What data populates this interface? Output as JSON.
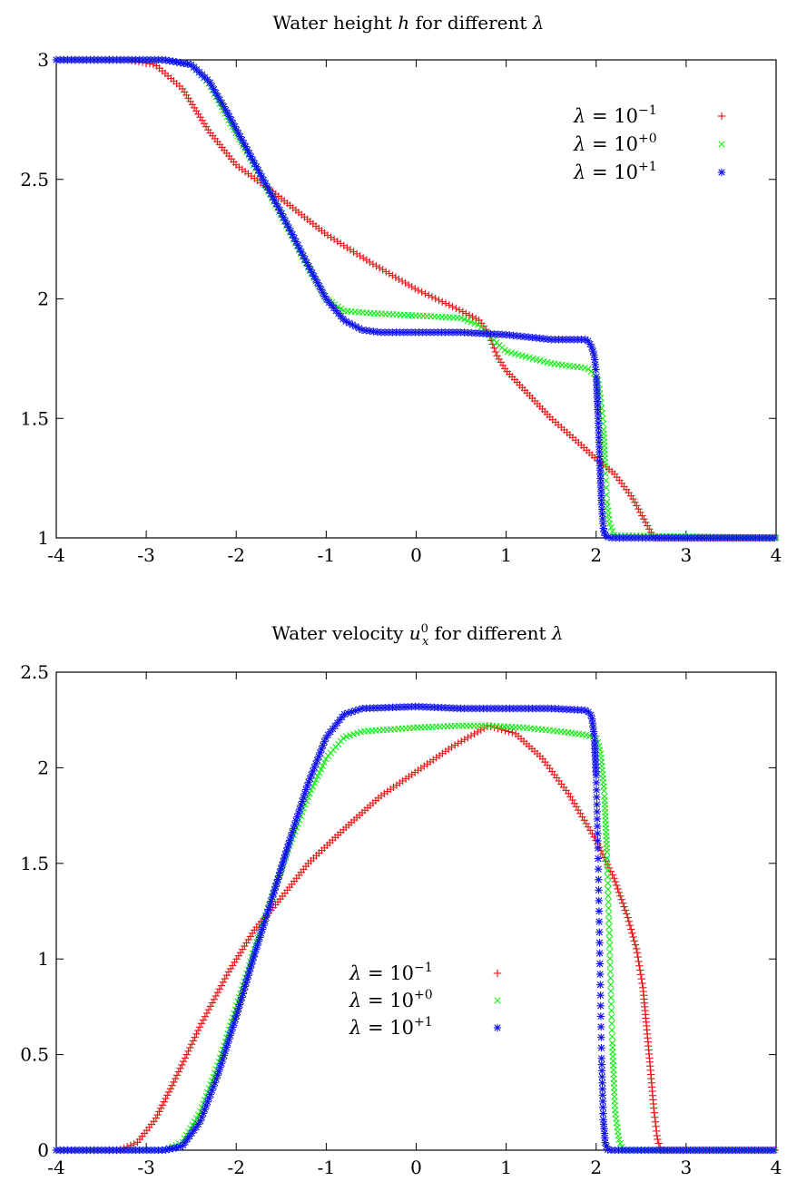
{
  "colors": {
    "red": "#ee1111",
    "green": "#11ee11",
    "blue": "#1111ee"
  },
  "chart_data": [
    {
      "type": "scatter",
      "title": "Water height h for different λ",
      "xlabel": "",
      "ylabel": "",
      "xlim": [
        -4,
        4
      ],
      "ylim": [
        1,
        3
      ],
      "xticks": [
        "-4",
        "-3",
        "-2",
        "-1",
        "0",
        "1",
        "2",
        "3",
        "4"
      ],
      "yticks": [
        "1",
        "1.5",
        "2",
        "2.5",
        "3"
      ],
      "grid": false,
      "legend_position": "top-right",
      "series": [
        {
          "name": "λ = 10^-1",
          "marker": "plus",
          "color": "#ee1111",
          "points": [
            [
              -4,
              3
            ],
            [
              -3.2,
              3
            ],
            [
              -2.9,
              2.98
            ],
            [
              -2.6,
              2.88
            ],
            [
              -2.3,
              2.7
            ],
            [
              -2.0,
              2.56
            ],
            [
              -1.6,
              2.45
            ],
            [
              -1.3,
              2.36
            ],
            [
              -1.0,
              2.27
            ],
            [
              -0.5,
              2.15
            ],
            [
              0.0,
              2.04
            ],
            [
              0.5,
              1.95
            ],
            [
              0.7,
              1.91
            ],
            [
              0.8,
              1.86
            ],
            [
              0.9,
              1.76
            ],
            [
              1.0,
              1.7
            ],
            [
              1.2,
              1.62
            ],
            [
              1.5,
              1.5
            ],
            [
              1.8,
              1.4
            ],
            [
              2.0,
              1.33
            ],
            [
              2.2,
              1.27
            ],
            [
              2.4,
              1.17
            ],
            [
              2.5,
              1.1
            ],
            [
              2.6,
              1.03
            ],
            [
              2.65,
              1.0
            ],
            [
              4,
              1
            ]
          ]
        },
        {
          "name": "λ = 10^+0",
          "marker": "cross",
          "color": "#11ee11",
          "points": [
            [
              -4,
              3
            ],
            [
              -2.8,
              3
            ],
            [
              -2.5,
              2.98
            ],
            [
              -2.3,
              2.9
            ],
            [
              -2.1,
              2.76
            ],
            [
              -1.8,
              2.56
            ],
            [
              -1.5,
              2.35
            ],
            [
              -1.2,
              2.13
            ],
            [
              -1.0,
              2.0
            ],
            [
              -0.8,
              1.95
            ],
            [
              -0.5,
              1.94
            ],
            [
              0.0,
              1.93
            ],
            [
              0.5,
              1.92
            ],
            [
              0.7,
              1.89
            ],
            [
              0.8,
              1.85
            ],
            [
              1.0,
              1.78
            ],
            [
              1.5,
              1.73
            ],
            [
              1.9,
              1.71
            ],
            [
              2.0,
              1.68
            ],
            [
              2.03,
              1.64
            ],
            [
              2.05,
              1.58
            ],
            [
              2.08,
              1.47
            ],
            [
              2.1,
              1.3
            ],
            [
              2.12,
              1.15
            ],
            [
              2.15,
              1.06
            ],
            [
              2.2,
              1.01
            ],
            [
              4,
              1
            ]
          ]
        },
        {
          "name": "λ = 10^+1",
          "marker": "star",
          "color": "#1111ee",
          "points": [
            [
              -4,
              3
            ],
            [
              -2.8,
              3
            ],
            [
              -2.5,
              2.98
            ],
            [
              -2.3,
              2.91
            ],
            [
              -2.1,
              2.78
            ],
            [
              -1.8,
              2.57
            ],
            [
              -1.5,
              2.36
            ],
            [
              -1.2,
              2.14
            ],
            [
              -1.0,
              2.0
            ],
            [
              -0.8,
              1.91
            ],
            [
              -0.6,
              1.87
            ],
            [
              -0.4,
              1.86
            ],
            [
              0.0,
              1.86
            ],
            [
              0.5,
              1.86
            ],
            [
              1.0,
              1.85
            ],
            [
              1.5,
              1.83
            ],
            [
              1.9,
              1.83
            ],
            [
              1.95,
              1.8
            ],
            [
              1.98,
              1.76
            ],
            [
              2.0,
              1.69
            ],
            [
              2.02,
              1.52
            ],
            [
              2.04,
              1.32
            ],
            [
              2.06,
              1.14
            ],
            [
              2.08,
              1.04
            ],
            [
              2.1,
              1.01
            ],
            [
              2.15,
              1.0
            ],
            [
              4,
              1
            ]
          ]
        }
      ]
    },
    {
      "type": "scatter",
      "title": "Water velocity u_x^0 for different λ",
      "xlabel": "",
      "ylabel": "",
      "xlim": [
        -4,
        4
      ],
      "ylim": [
        0,
        2.5
      ],
      "xticks": [
        "-4",
        "-3",
        "-2",
        "-1",
        "0",
        "1",
        "2",
        "3",
        "4"
      ],
      "yticks": [
        "0",
        "0.5",
        "1",
        "1.5",
        "2",
        "2.5"
      ],
      "grid": false,
      "legend_position": "bottom-center",
      "series": [
        {
          "name": "λ = 10^-1",
          "marker": "plus",
          "color": "#ee1111",
          "points": [
            [
              -4,
              0
            ],
            [
              -3.3,
              0
            ],
            [
              -3.1,
              0.04
            ],
            [
              -2.9,
              0.16
            ],
            [
              -2.7,
              0.35
            ],
            [
              -2.4,
              0.65
            ],
            [
              -2.1,
              0.92
            ],
            [
              -1.8,
              1.15
            ],
            [
              -1.5,
              1.32
            ],
            [
              -1.2,
              1.5
            ],
            [
              -0.8,
              1.68
            ],
            [
              -0.4,
              1.85
            ],
            [
              0.0,
              1.98
            ],
            [
              0.4,
              2.11
            ],
            [
              0.8,
              2.22
            ],
            [
              1.1,
              2.18
            ],
            [
              1.4,
              2.05
            ],
            [
              1.7,
              1.86
            ],
            [
              2.0,
              1.62
            ],
            [
              2.2,
              1.42
            ],
            [
              2.35,
              1.22
            ],
            [
              2.45,
              1.05
            ],
            [
              2.52,
              0.85
            ],
            [
              2.56,
              0.65
            ],
            [
              2.6,
              0.44
            ],
            [
              2.64,
              0.22
            ],
            [
              2.68,
              0.06
            ],
            [
              2.72,
              0.0
            ],
            [
              4,
              0
            ]
          ]
        },
        {
          "name": "λ = 10^+0",
          "marker": "cross",
          "color": "#11ee11",
          "points": [
            [
              -4,
              0
            ],
            [
              -2.8,
              0
            ],
            [
              -2.6,
              0.04
            ],
            [
              -2.4,
              0.2
            ],
            [
              -2.2,
              0.45
            ],
            [
              -2.0,
              0.75
            ],
            [
              -1.8,
              1.05
            ],
            [
              -1.6,
              1.33
            ],
            [
              -1.4,
              1.6
            ],
            [
              -1.2,
              1.85
            ],
            [
              -1.0,
              2.05
            ],
            [
              -0.8,
              2.16
            ],
            [
              -0.6,
              2.19
            ],
            [
              0.0,
              2.21
            ],
            [
              0.5,
              2.22
            ],
            [
              0.8,
              2.22
            ],
            [
              1.2,
              2.21
            ],
            [
              1.6,
              2.19
            ],
            [
              1.9,
              2.17
            ],
            [
              2.0,
              2.16
            ],
            [
              2.04,
              2.1
            ],
            [
              2.06,
              2.03
            ],
            [
              2.09,
              1.87
            ],
            [
              2.12,
              1.56
            ],
            [
              2.15,
              1.07
            ],
            [
              2.18,
              0.56
            ],
            [
              2.21,
              0.21
            ],
            [
              2.25,
              0.06
            ],
            [
              2.3,
              0.0
            ],
            [
              4,
              0
            ]
          ]
        },
        {
          "name": "λ = 10^+1",
          "marker": "star",
          "color": "#1111ee",
          "points": [
            [
              -4,
              0
            ],
            [
              -2.8,
              0
            ],
            [
              -2.6,
              0.02
            ],
            [
              -2.4,
              0.15
            ],
            [
              -2.2,
              0.4
            ],
            [
              -2.0,
              0.7
            ],
            [
              -1.8,
              1.02
            ],
            [
              -1.6,
              1.32
            ],
            [
              -1.4,
              1.63
            ],
            [
              -1.2,
              1.92
            ],
            [
              -1.0,
              2.16
            ],
            [
              -0.8,
              2.28
            ],
            [
              -0.6,
              2.31
            ],
            [
              0.0,
              2.32
            ],
            [
              0.5,
              2.31
            ],
            [
              1.0,
              2.31
            ],
            [
              1.5,
              2.31
            ],
            [
              1.9,
              2.3
            ],
            [
              1.95,
              2.27
            ],
            [
              1.98,
              2.16
            ],
            [
              2.0,
              1.96
            ],
            [
              2.02,
              1.58
            ],
            [
              2.04,
              1.03
            ],
            [
              2.06,
              0.48
            ],
            [
              2.08,
              0.16
            ],
            [
              2.1,
              0.04
            ],
            [
              2.13,
              0.0
            ],
            [
              4,
              0
            ]
          ]
        }
      ]
    }
  ]
}
